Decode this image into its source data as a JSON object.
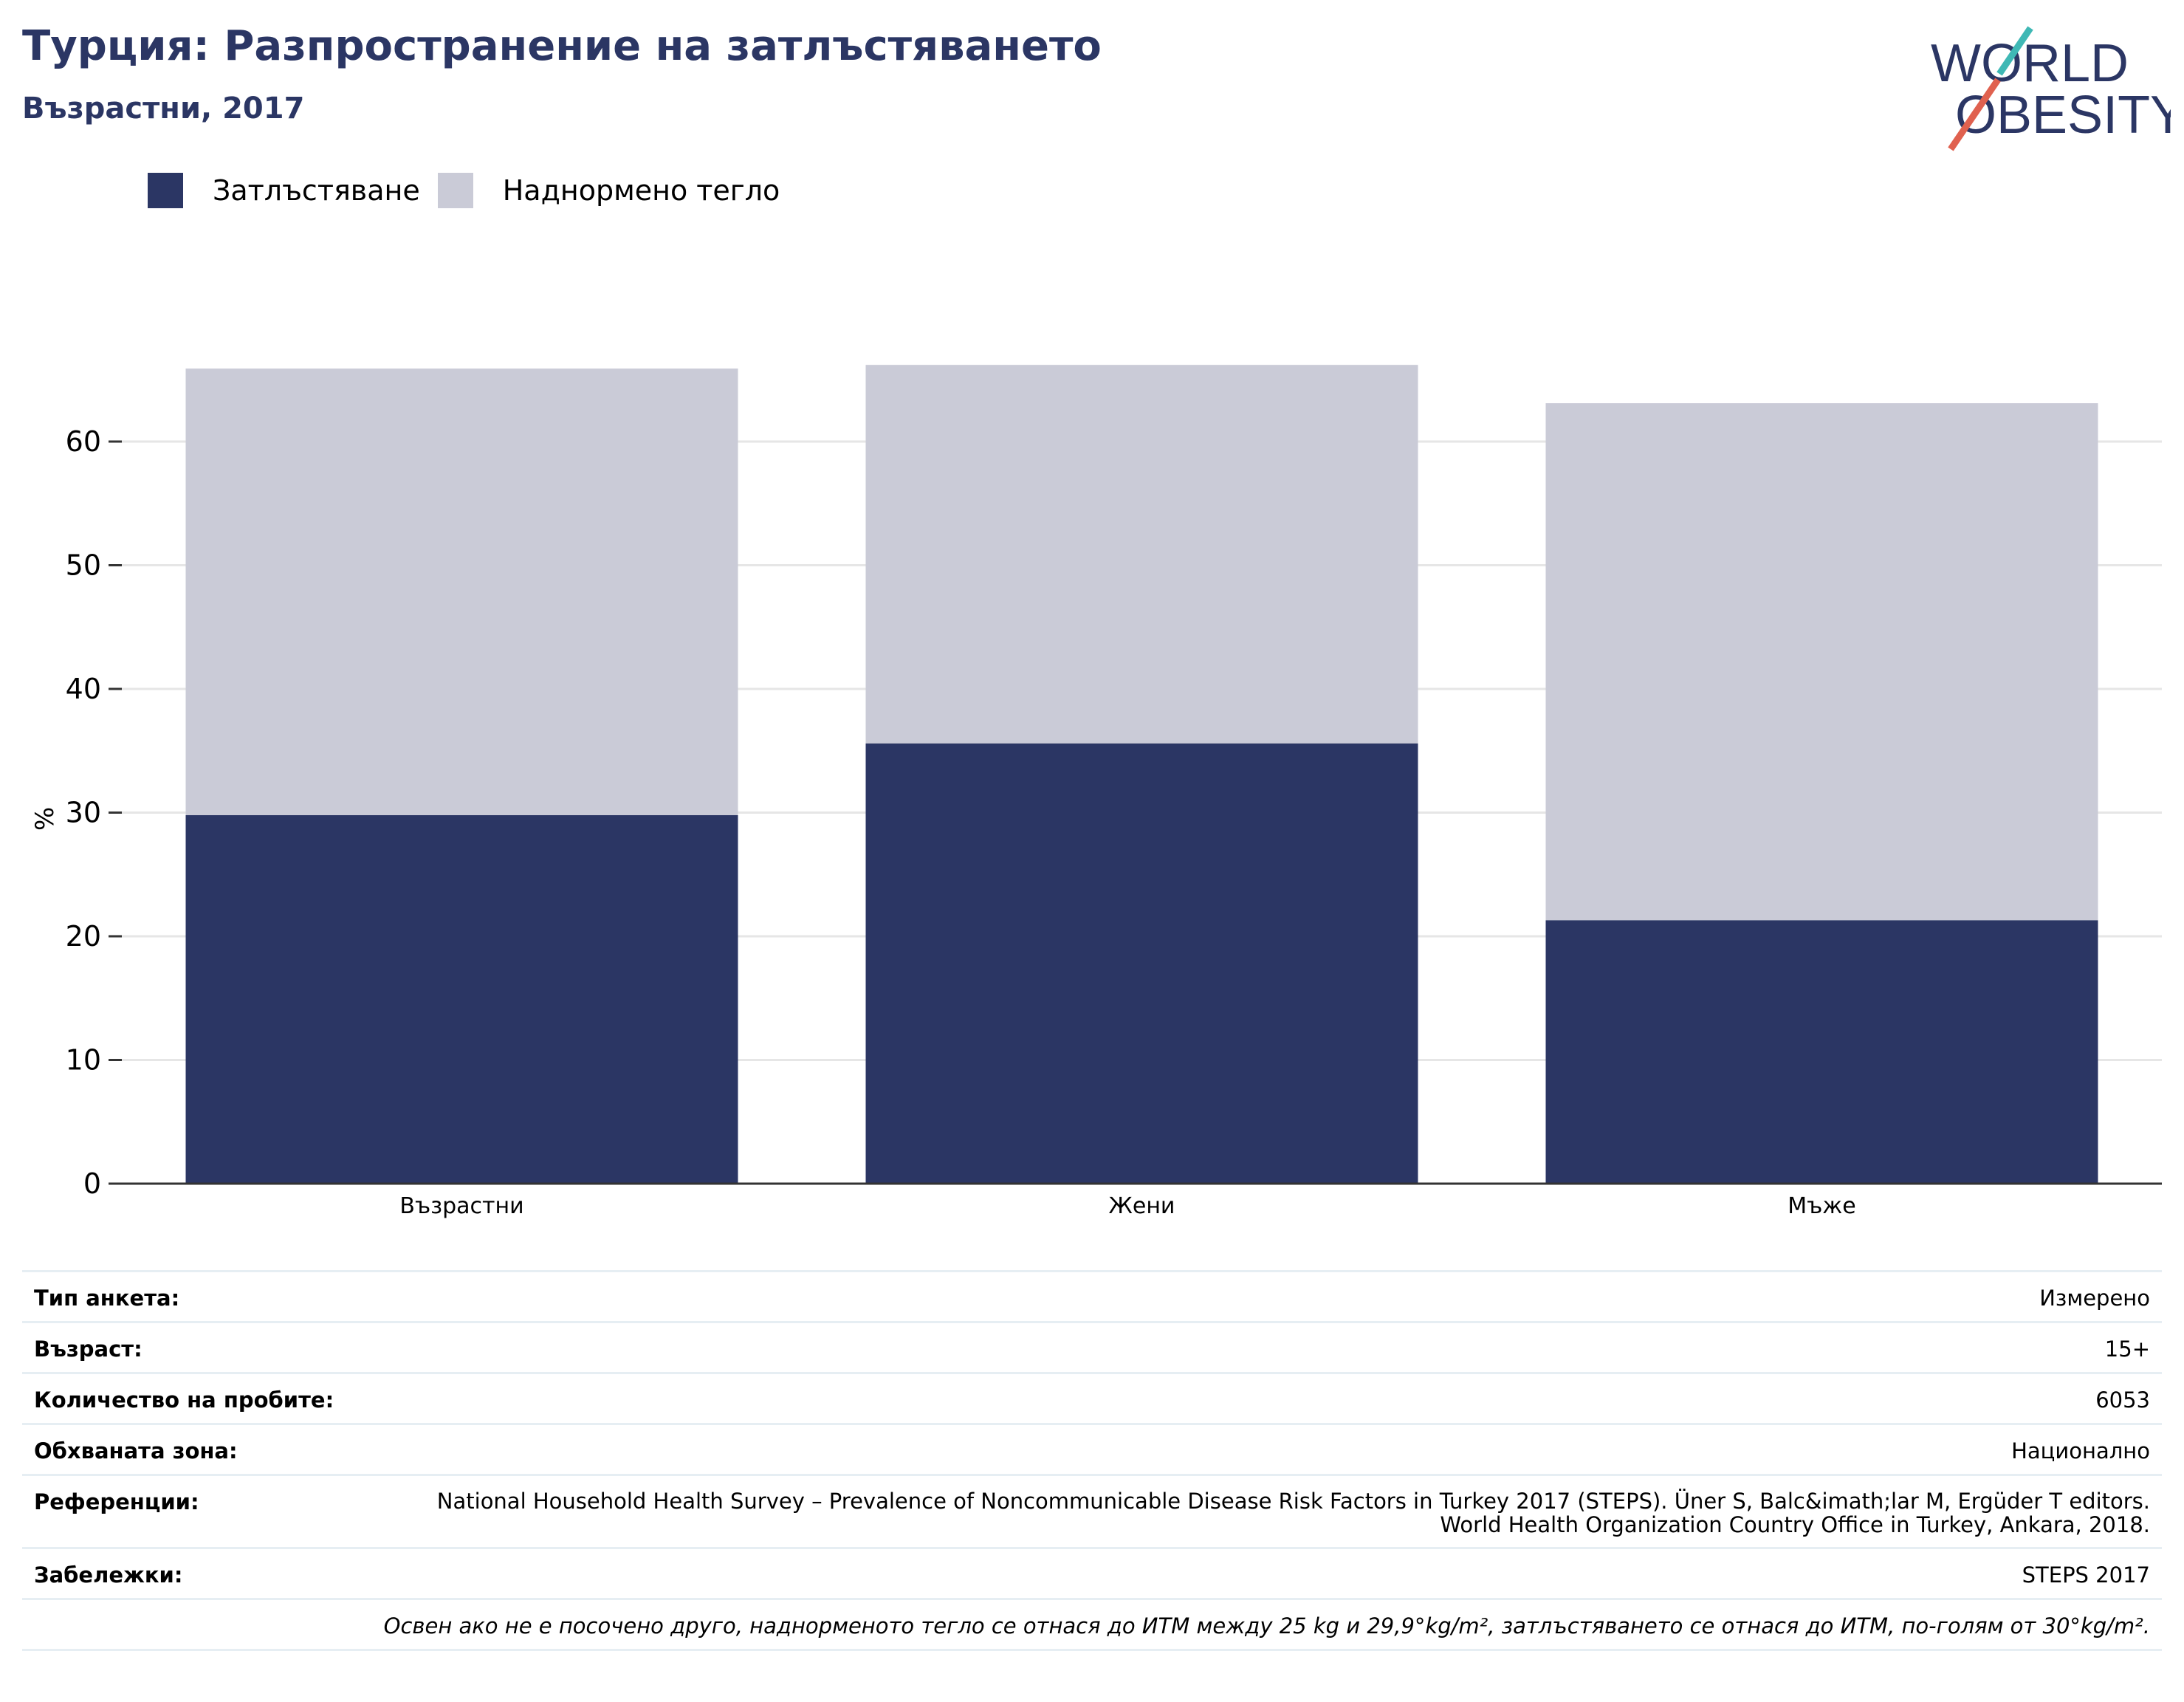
{
  "header": {
    "title": "Турция: Разпространение на затлъстяването",
    "subtitle": "Възрастни, 2017"
  },
  "logo": {
    "line1": "WORLD",
    "line2": "OBESITY",
    "icon": "world-obesity-logo"
  },
  "colors": {
    "obesity": "#2b3664",
    "overweight": "#cacbd7",
    "accent_teal": "#3fb8b5",
    "accent_red": "#e0614f",
    "grid": "#e6e6e6"
  },
  "chart_data": {
    "type": "bar",
    "stacked": true,
    "categories": [
      "Възрастни",
      "Жени",
      "Мъже"
    ],
    "series": [
      {
        "name": "Затлъстяване",
        "values": [
          29.8,
          35.6,
          21.3
        ]
      },
      {
        "name": "Наднормено тегло",
        "values": [
          36.1,
          30.6,
          41.8
        ]
      }
    ],
    "ylabel": "%",
    "ylim": [
      0,
      70
    ],
    "yticks": [
      0,
      10,
      20,
      30,
      40,
      50,
      60
    ],
    "grid": true,
    "legend": "top-left"
  },
  "info": {
    "rows": [
      {
        "key": "Тип анкета:",
        "value": "Измерено"
      },
      {
        "key": "Възраст:",
        "value": "15+"
      },
      {
        "key": "Количество на пробите:",
        "value": "6053"
      },
      {
        "key": "Обхваната зона:",
        "value": "Национално"
      },
      {
        "key": "Референции:",
        "value": "National Household Health Survey – Prevalence of Noncommunicable Disease Risk Factors in Turkey 2017 (STEPS). Üner S, Balc&imath;lar M, Ergüder T editors. World Health Organization Country Office in Turkey, Ankara, 2018."
      },
      {
        "key": "Забележки:",
        "value": "STEPS 2017"
      }
    ],
    "note": "Освен ако не е посочено друго, наднорменото тегло се отнася до ИТМ между 25 kg и 29,9°kg/m², затлъстяването се отнася до ИТМ, по-голям от 30°kg/m²."
  }
}
